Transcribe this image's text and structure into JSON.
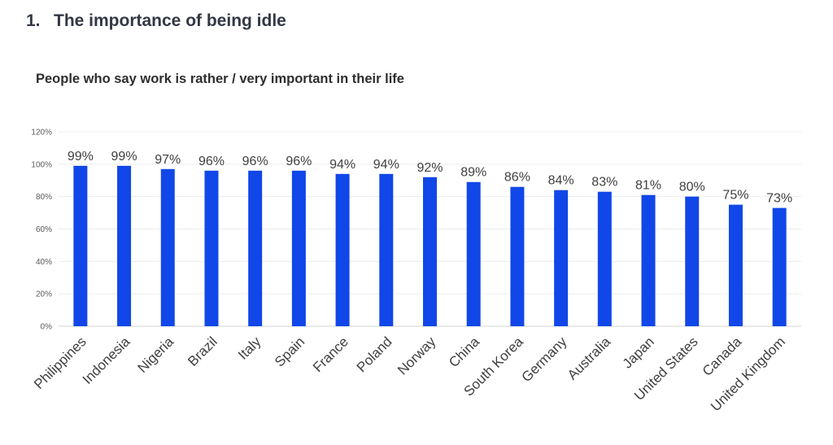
{
  "page": {
    "section_number": "1.",
    "section_title": "The importance of being idle"
  },
  "chart_data": {
    "type": "bar",
    "title": "People who say work is rather / very important in their life",
    "categories": [
      "Philippines",
      "Indonesia",
      "Nigeria",
      "Brazil",
      "Italy",
      "Spain",
      "France",
      "Poland",
      "Norway",
      "China",
      "South Korea",
      "Germany",
      "Australia",
      "Japan",
      "United States",
      "Canada",
      "United Kingdom"
    ],
    "values": [
      99,
      99,
      97,
      96,
      96,
      96,
      94,
      94,
      92,
      89,
      86,
      84,
      83,
      81,
      80,
      75,
      73
    ],
    "data_labels": [
      "99%",
      "99%",
      "97%",
      "96%",
      "96%",
      "96%",
      "94%",
      "94%",
      "92%",
      "89%",
      "86%",
      "84%",
      "83%",
      "81%",
      "80%",
      "75%",
      "73%"
    ],
    "y_ticks": [
      0,
      20,
      40,
      60,
      80,
      100,
      120
    ],
    "y_tick_labels": [
      "0%",
      "20%",
      "40%",
      "60%",
      "80%",
      "100%",
      "120%"
    ],
    "ylim": [
      0,
      120
    ],
    "xlabel": "",
    "ylabel": "",
    "grid": true,
    "legend": "none",
    "bar_color": "#1147e8"
  }
}
